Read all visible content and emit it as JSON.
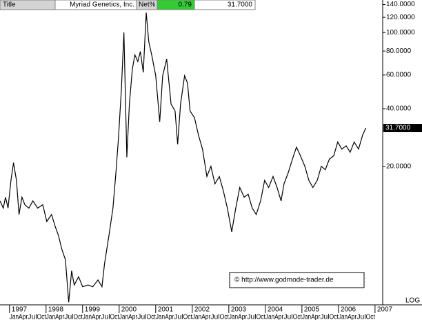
{
  "chart_data": {
    "type": "line",
    "header": {
      "title_label": "Title",
      "title": "Myriad Genetics, Inc.",
      "net_label": "Net%",
      "net_change": 0.79,
      "last_label": "31.7000"
    },
    "watermark": "© http://www.godmode-trader.de",
    "scale_label": "LOG",
    "log_scale": true,
    "grid": false,
    "color": "#000000",
    "x": [
      1996.74,
      1996.83,
      1996.89,
      1996.96,
      1997.04,
      1997.11,
      1997.19,
      1997.26,
      1997.34,
      1997.42,
      1997.53,
      1997.64,
      1997.77,
      1997.91,
      1998.02,
      1998.15,
      1998.25,
      1998.34,
      1998.43,
      1998.53,
      1998.62,
      1998.7,
      1998.77,
      1998.89,
      1999.0,
      1999.15,
      1999.28,
      1999.42,
      1999.53,
      1999.6,
      1999.72,
      1999.83,
      1999.91,
      1999.98,
      2000.06,
      2000.13,
      2000.21,
      2000.28,
      2000.36,
      2000.43,
      2000.51,
      2000.58,
      2000.66,
      2000.74,
      2000.81,
      2000.89,
      2001.0,
      2001.11,
      2001.19,
      2001.3,
      2001.42,
      2001.53,
      2001.6,
      2001.68,
      2001.79,
      2001.87,
      2001.94,
      2002.06,
      2002.17,
      2002.28,
      2002.4,
      2002.51,
      2002.62,
      2002.74,
      2002.85,
      2002.96,
      2003.08,
      2003.19,
      2003.3,
      2003.42,
      2003.53,
      2003.64,
      2003.75,
      2003.87,
      2003.98,
      2004.09,
      2004.21,
      2004.32,
      2004.43,
      2004.51,
      2004.62,
      2004.74,
      2004.85,
      2004.96,
      2005.08,
      2005.19,
      2005.3,
      2005.42,
      2005.53,
      2005.64,
      2005.75,
      2005.87,
      2005.98,
      2006.09,
      2006.21,
      2006.32,
      2006.43,
      2006.55,
      2006.66,
      2006.75
    ],
    "values": [
      13.2,
      12.1,
      13.8,
      12.1,
      16.9,
      20.9,
      16.9,
      11.2,
      13.8,
      12.6,
      12.1,
      13.2,
      12.1,
      12.6,
      10.3,
      11.2,
      9.7,
      8.7,
      7.4,
      6.5,
      3.9,
      5.7,
      4.8,
      5.3,
      4.7,
      4.8,
      4.7,
      5.1,
      4.7,
      6.2,
      8.7,
      12.1,
      18.4,
      27.9,
      50.1,
      100,
      22.3,
      42.3,
      64.2,
      76.4,
      70.5,
      79.6,
      61.9,
      126.9,
      89.6,
      76.4,
      59.5,
      34.2,
      59.5,
      72.6,
      42.3,
      38.9,
      26.1,
      42.3,
      59.5,
      54.4,
      38.9,
      35.9,
      29.1,
      24.6,
      17.7,
      20,
      16.2,
      17.7,
      14.9,
      12.1,
      9.1,
      12.1,
      15.5,
      13.8,
      14.3,
      12.1,
      11.2,
      13.2,
      16.9,
      15.5,
      17.7,
      15.5,
      13.2,
      16.2,
      18.4,
      21.8,
      25.2,
      22.7,
      20,
      16.9,
      15.5,
      16.9,
      20,
      19.2,
      21.8,
      22.7,
      26.8,
      24.6,
      25.6,
      23.7,
      26.8,
      24.6,
      29.1,
      31.7
    ],
    "xlim": [
      1996.74,
      2007.21
    ],
    "xticks": [
      1997,
      1998,
      1999,
      2000,
      2001,
      2002,
      2003,
      2004,
      2005,
      2006,
      2007
    ],
    "quarter_labels": [
      "Jan",
      "Apr",
      "Jul",
      "Oct"
    ],
    "ylim": [
      3.78,
      147.8
    ],
    "yticks": [
      {
        "value": 140,
        "label": "140.0000"
      },
      {
        "value": 120,
        "label": "120.0000"
      },
      {
        "value": 100,
        "label": "100.0000"
      },
      {
        "value": 80,
        "label": "80.0000"
      },
      {
        "value": 60,
        "label": "60.0000"
      },
      {
        "value": 40,
        "label": "40.0000"
      },
      {
        "value": 20,
        "label": "20.0000"
      }
    ]
  }
}
